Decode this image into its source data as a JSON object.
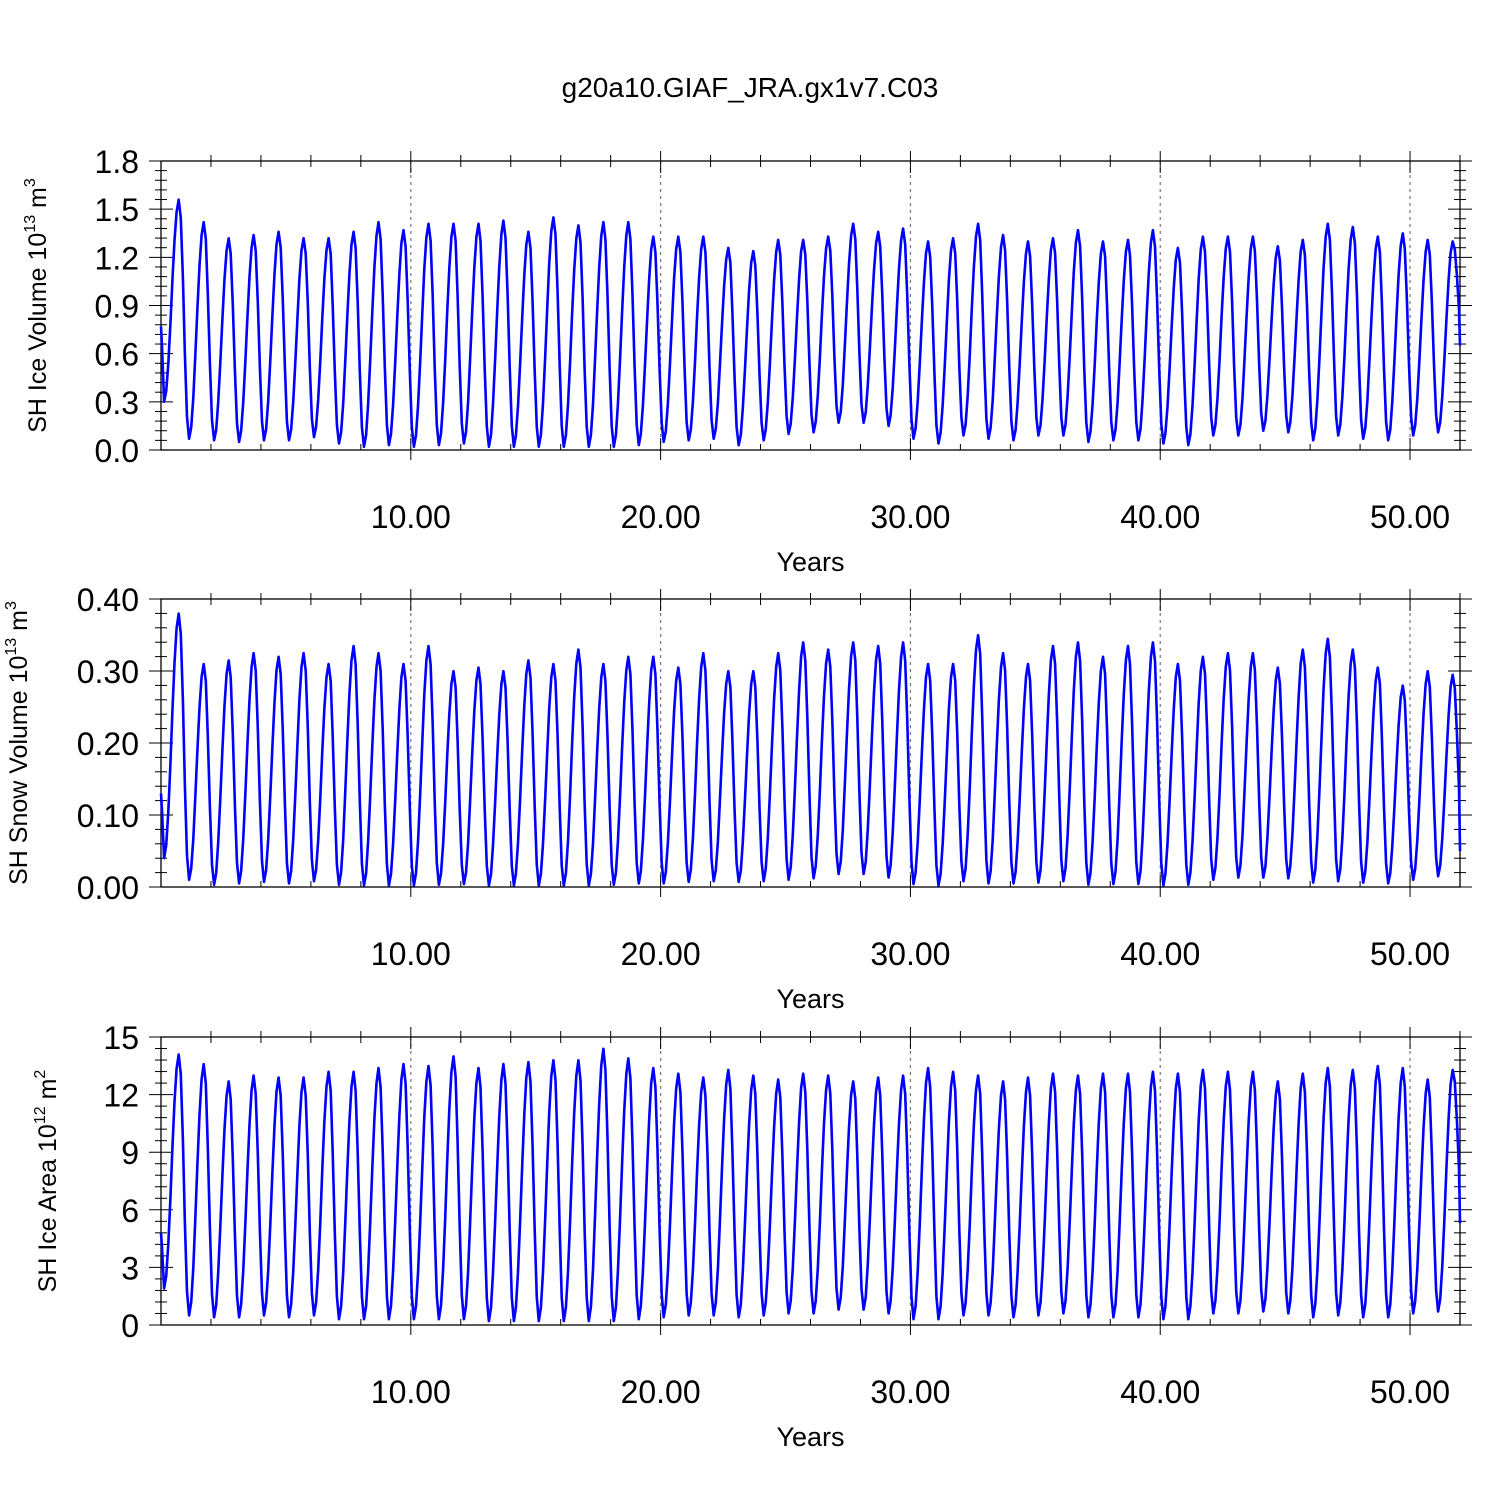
{
  "figure": {
    "title": "g20a10.GIAF_JRA.gx1v7.C03"
  },
  "chart_data": [
    {
      "type": "line",
      "ylabel_main": "SH Ice Volume 10",
      "ylabel_exp": "13",
      "ylabel_unit": " m",
      "ylabel_unit_exp": "3",
      "xlabel": "Years",
      "xlim": [
        0.0,
        52.0
      ],
      "ylim": [
        0.0,
        1.8
      ],
      "xticks": [
        10,
        20,
        30,
        40,
        50
      ],
      "xtick_labels": [
        "10.00",
        "20.00",
        "30.00",
        "40.00",
        "50.00"
      ],
      "yticks": [
        0.0,
        0.3,
        0.6,
        0.9,
        1.2,
        1.5,
        1.8
      ],
      "ytick_labels": [
        "0.0",
        "0.3",
        "0.6",
        "0.9",
        "1.2",
        "1.5",
        "1.8"
      ],
      "grid": "dashed vertical lines at x = 10, 20, 30, 40, 50",
      "series_color": "#0000ff",
      "start_value": 0.77,
      "end_value": 0.65,
      "annual_minima": [
        0.3,
        0.07,
        0.06,
        0.05,
        0.06,
        0.06,
        0.08,
        0.04,
        0.02,
        0.03,
        0.02,
        0.03,
        0.04,
        0.02,
        0.02,
        0.02,
        0.02,
        0.02,
        0.02,
        0.03,
        0.05,
        0.06,
        0.07,
        0.03,
        0.06,
        0.1,
        0.11,
        0.17,
        0.17,
        0.15,
        0.07,
        0.04,
        0.09,
        0.07,
        0.06,
        0.09,
        0.09,
        0.05,
        0.06,
        0.06,
        0.04,
        0.03,
        0.09,
        0.09,
        0.12,
        0.11,
        0.06,
        0.09,
        0.07,
        0.06,
        0.09,
        0.11
      ],
      "annual_maxima": [
        1.56,
        1.42,
        1.32,
        1.34,
        1.36,
        1.32,
        1.32,
        1.36,
        1.42,
        1.37,
        1.41,
        1.41,
        1.41,
        1.43,
        1.36,
        1.45,
        1.4,
        1.42,
        1.42,
        1.33,
        1.33,
        1.33,
        1.26,
        1.24,
        1.31,
        1.31,
        1.33,
        1.41,
        1.36,
        1.38,
        1.3,
        1.32,
        1.41,
        1.34,
        1.3,
        1.32,
        1.37,
        1.3,
        1.31,
        1.37,
        1.26,
        1.33,
        1.33,
        1.33,
        1.27,
        1.31,
        1.41,
        1.39,
        1.33,
        1.35,
        1.31,
        1.3
      ]
    },
    {
      "type": "line",
      "ylabel_main": "SH Snow Volume 10",
      "ylabel_exp": "13",
      "ylabel_unit": " m",
      "ylabel_unit_exp": "3",
      "xlabel": "Years",
      "xlim": [
        0.0,
        52.0
      ],
      "ylim": [
        0.0,
        0.4
      ],
      "xticks": [
        10,
        20,
        30,
        40,
        50
      ],
      "xtick_labels": [
        "10.00",
        "20.00",
        "30.00",
        "40.00",
        "50.00"
      ],
      "yticks": [
        0.0,
        0.1,
        0.2,
        0.3,
        0.4
      ],
      "ytick_labels": [
        "0.00",
        "0.10",
        "0.20",
        "0.30",
        "0.40"
      ],
      "grid": "dashed vertical lines at x = 10, 20, 30, 40, 50",
      "series_color": "#0000ff",
      "start_value": 0.13,
      "end_value": 0.05,
      "annual_minima": [
        0.04,
        0.01,
        0.003,
        0.005,
        0.007,
        0.005,
        0.008,
        0.003,
        0.002,
        0.002,
        0.002,
        0.003,
        0.004,
        0.002,
        0.002,
        0.002,
        0.002,
        0.002,
        0.003,
        0.005,
        0.005,
        0.007,
        0.008,
        0.007,
        0.008,
        0.01,
        0.012,
        0.018,
        0.018,
        0.013,
        0.004,
        0.002,
        0.008,
        0.005,
        0.005,
        0.006,
        0.008,
        0.003,
        0.004,
        0.004,
        0.002,
        0.003,
        0.01,
        0.013,
        0.013,
        0.012,
        0.006,
        0.008,
        0.006,
        0.005,
        0.01,
        0.015
      ],
      "annual_maxima": [
        0.38,
        0.31,
        0.315,
        0.325,
        0.32,
        0.325,
        0.31,
        0.335,
        0.325,
        0.31,
        0.335,
        0.3,
        0.305,
        0.3,
        0.315,
        0.31,
        0.33,
        0.31,
        0.32,
        0.32,
        0.305,
        0.325,
        0.3,
        0.3,
        0.325,
        0.34,
        0.33,
        0.34,
        0.335,
        0.34,
        0.31,
        0.31,
        0.35,
        0.325,
        0.31,
        0.335,
        0.34,
        0.32,
        0.335,
        0.34,
        0.31,
        0.32,
        0.325,
        0.325,
        0.305,
        0.33,
        0.345,
        0.33,
        0.305,
        0.28,
        0.3,
        0.295
      ]
    },
    {
      "type": "line",
      "ylabel_main": "SH Ice Area 10",
      "ylabel_exp": "12",
      "ylabel_unit": " m",
      "ylabel_unit_exp": "2",
      "xlabel": "Years",
      "xlim": [
        0.0,
        52.0
      ],
      "ylim": [
        0,
        15
      ],
      "xticks": [
        10,
        20,
        30,
        40,
        50
      ],
      "xtick_labels": [
        "10.00",
        "20.00",
        "30.00",
        "40.00",
        "50.00"
      ],
      "yticks": [
        0,
        3,
        6,
        9,
        12,
        15
      ],
      "ytick_labels": [
        "0",
        "3",
        "6",
        "9",
        "12",
        "15"
      ],
      "grid": "dashed vertical lines at x = 10, 20, 30, 40, 50",
      "series_color": "#0000ff",
      "start_value": 4.8,
      "end_value": 5.3,
      "annual_minima": [
        1.9,
        0.5,
        0.4,
        0.4,
        0.5,
        0.4,
        0.5,
        0.3,
        0.3,
        0.3,
        0.3,
        0.3,
        0.3,
        0.2,
        0.2,
        0.2,
        0.2,
        0.2,
        0.2,
        0.3,
        0.4,
        0.5,
        0.5,
        0.4,
        0.5,
        0.6,
        0.6,
        0.8,
        0.8,
        0.6,
        0.3,
        0.3,
        0.5,
        0.5,
        0.4,
        0.5,
        0.6,
        0.4,
        0.4,
        0.4,
        0.3,
        0.3,
        0.6,
        0.6,
        0.7,
        0.6,
        0.4,
        0.5,
        0.4,
        0.4,
        0.6,
        0.7
      ],
      "annual_maxima": [
        14.1,
        13.6,
        12.7,
        13.0,
        12.9,
        12.9,
        13.2,
        13.2,
        13.4,
        13.6,
        13.5,
        14.0,
        13.4,
        13.6,
        13.7,
        13.8,
        13.8,
        14.4,
        13.9,
        13.4,
        13.1,
        12.9,
        13.3,
        13.0,
        12.8,
        13.1,
        13.0,
        12.7,
        12.9,
        13.0,
        13.4,
        13.2,
        13.0,
        12.7,
        12.9,
        13.1,
        13.0,
        13.1,
        13.1,
        13.2,
        13.1,
        13.3,
        13.2,
        13.2,
        12.7,
        13.1,
        13.4,
        13.3,
        13.5,
        13.4,
        12.8,
        13.3
      ]
    }
  ]
}
